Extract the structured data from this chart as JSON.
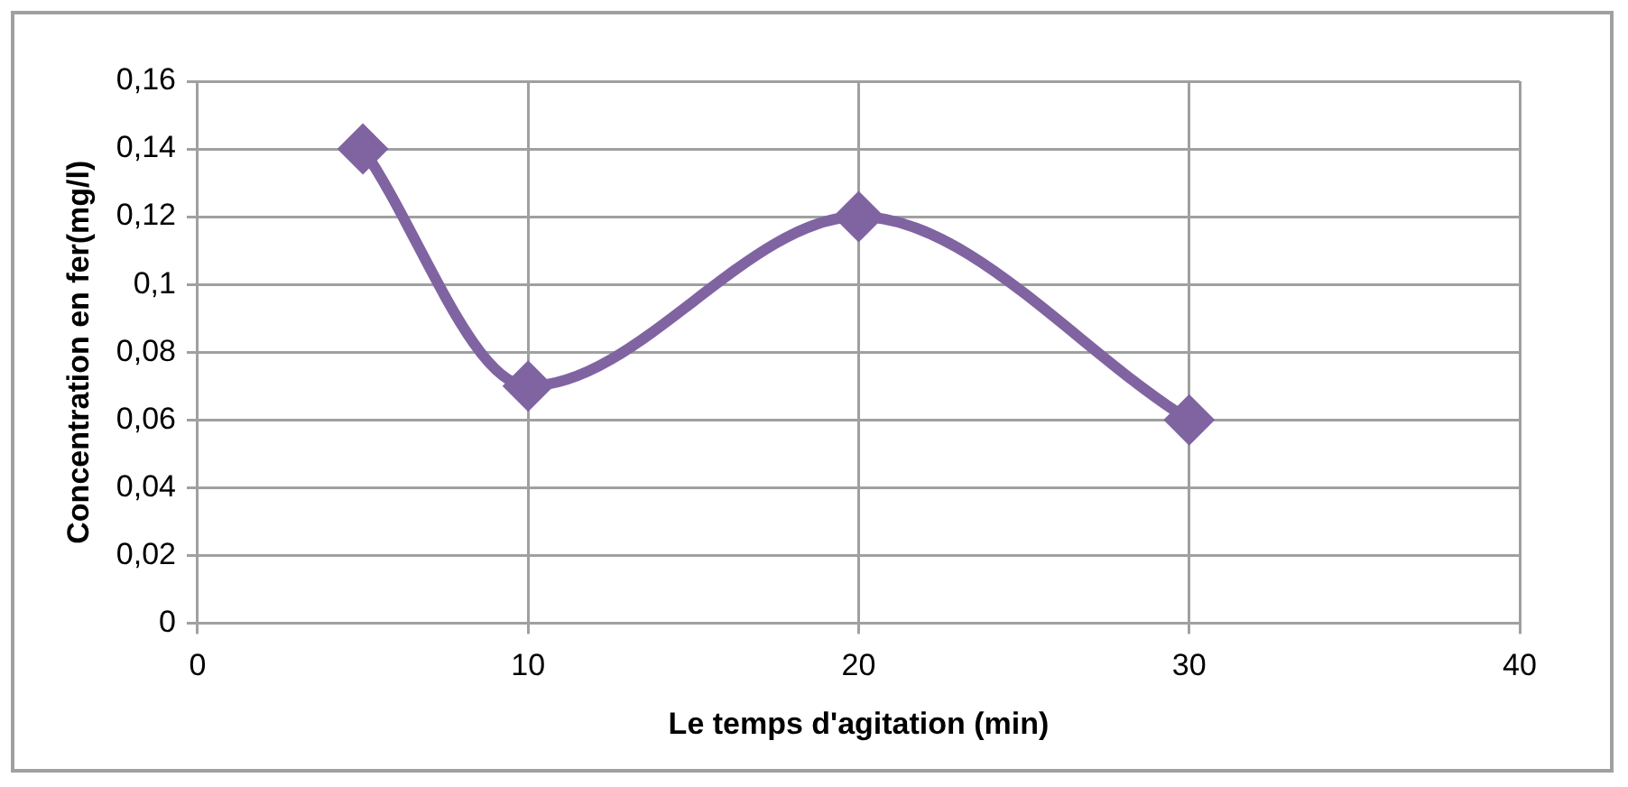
{
  "chart_data": {
    "type": "line",
    "xlabel": "Le temps d'agitation (min)",
    "ylabel": "Concentration en fer(mg/l)",
    "x": [
      5,
      10,
      20,
      30
    ],
    "series": [
      {
        "color": "#8064a2",
        "values": [
          0.14,
          0.07,
          0.12,
          0.06
        ]
      }
    ],
    "xlim": [
      0,
      40
    ],
    "xticks": [
      0,
      10,
      20,
      30,
      40
    ],
    "ylim": [
      0,
      0.16
    ],
    "yticks": [
      0,
      {
        "value": 0.02,
        "label": "0,02"
      },
      {
        "value": 0.04,
        "label": "0,04"
      },
      {
        "value": 0.06,
        "label": "0,06"
      },
      {
        "value": 0.08,
        "label": "0,08"
      },
      {
        "value": 0.1,
        "label": "0,1"
      },
      {
        "value": 0.12,
        "label": "0,12"
      },
      {
        "value": 0.14,
        "label": "0,14"
      },
      {
        "value": 0.16,
        "label": "0,16"
      }
    ],
    "grid": true,
    "marker": "diamond",
    "line_style": "solid",
    "legend": false
  }
}
